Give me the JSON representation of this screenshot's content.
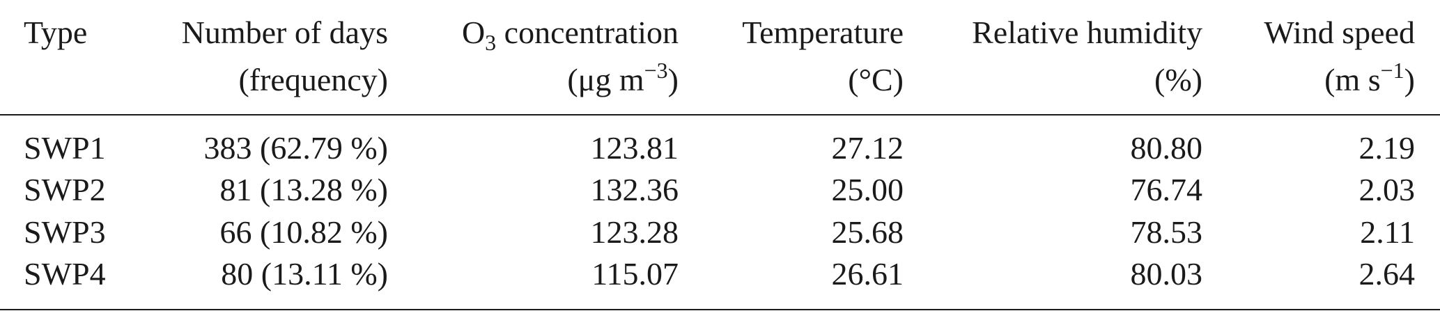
{
  "table": {
    "headers": [
      {
        "line1": "Type",
        "line2": ""
      },
      {
        "line1": "Number of days",
        "line2": "(frequency)"
      },
      {
        "line1_prefix": "O",
        "line1_sub": "3",
        "line1_suffix": " concentration",
        "line2_prefix": "(μg m",
        "line2_sup": "−3",
        "line2_suffix": ")"
      },
      {
        "line1": "Temperature",
        "line2": "(°C)"
      },
      {
        "line1": "Relative humidity",
        "line2": "(%)"
      },
      {
        "line1": "Wind speed",
        "line2_prefix": "(m s",
        "line2_sup": "−1",
        "line2_suffix": ")"
      }
    ],
    "rows": [
      [
        "SWP1",
        "383 (62.79 %)",
        "123.81",
        "27.12",
        "80.80",
        "2.19"
      ],
      [
        "SWP2",
        "81 (13.28 %)",
        "132.36",
        "25.00",
        "76.74",
        "2.03"
      ],
      [
        "SWP3",
        "66 (10.82 %)",
        "123.28",
        "25.68",
        "78.53",
        "2.11"
      ],
      [
        "SWP4",
        "80 (13.11 %)",
        "115.07",
        "26.61",
        "80.03",
        "2.64"
      ]
    ]
  }
}
